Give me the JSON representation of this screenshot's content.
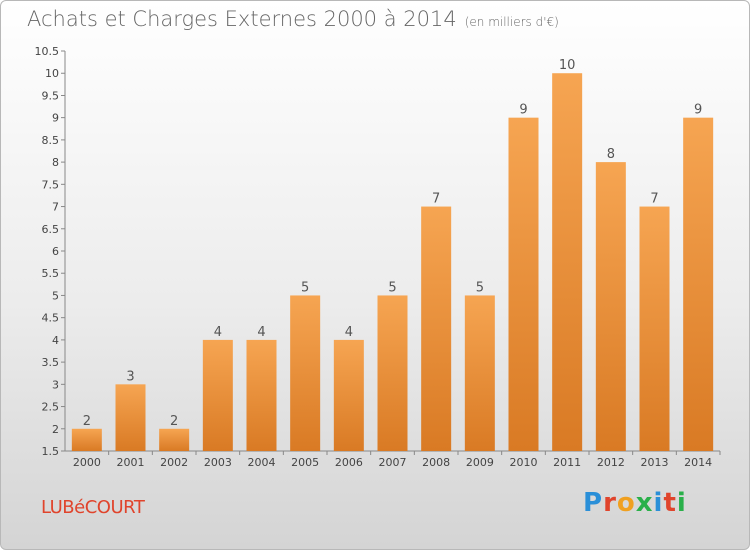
{
  "title": "Achats et Charges Externes 2000 à 2014",
  "subtitle": "(en milliers d'€)",
  "location": "LUBéCOURT",
  "logo": "Proxiti",
  "colors": {
    "bar_top": "#f6a552",
    "bar_bottom": "#d97a24",
    "axis": "#888888",
    "location": "#e0442c"
  },
  "chart_data": {
    "type": "bar",
    "title": "Achats et Charges Externes 2000 à 2014",
    "subtitle": "(en milliers d'€)",
    "xlabel": "",
    "ylabel": "",
    "categories": [
      "2000",
      "2001",
      "2002",
      "2003",
      "2004",
      "2005",
      "2006",
      "2007",
      "2008",
      "2009",
      "2010",
      "2011",
      "2012",
      "2013",
      "2014"
    ],
    "values": [
      2,
      3,
      2,
      4,
      4,
      5,
      4,
      5,
      7,
      5,
      9,
      10,
      8,
      7,
      9
    ],
    "ylim": [
      1.5,
      10.5
    ],
    "yticks": [
      "1.5",
      "2",
      "2.5",
      "3",
      "3.5",
      "4",
      "4.5",
      "5",
      "5.5",
      "6",
      "6.5",
      "7",
      "7.5",
      "8",
      "8.5",
      "9",
      "9.5",
      "10",
      "10.5"
    ],
    "grid": false
  }
}
